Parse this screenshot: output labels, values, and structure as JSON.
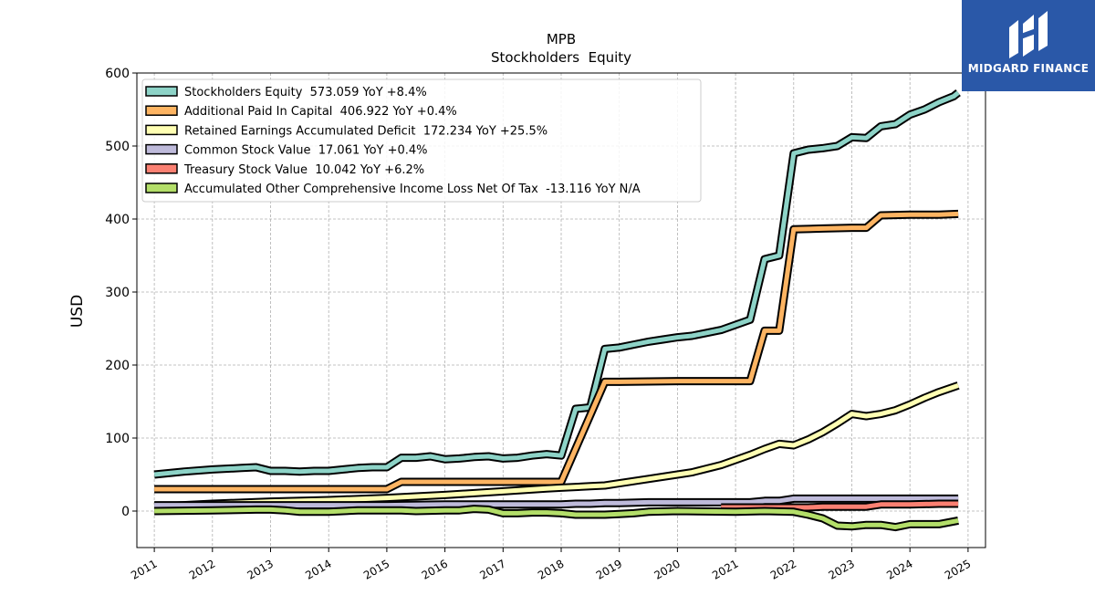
{
  "brand": {
    "name": "MIDGARD FINANCE",
    "logo_icon": "midgard-logo-icon",
    "background": "#2a58a8"
  },
  "chart_data": {
    "type": "line",
    "title": "MPB",
    "subtitle": "Stockholders  Equity",
    "ylabel": "USD",
    "xlabel": "",
    "xlim": [
      2010.7,
      2025.3
    ],
    "ylim": [
      -50,
      600
    ],
    "yticks": [
      0,
      100,
      200,
      300,
      400,
      500,
      600
    ],
    "xticks": [
      "2011",
      "2012",
      "2013",
      "2014",
      "2015",
      "2016",
      "2017",
      "2018",
      "2019",
      "2020",
      "2021",
      "2022",
      "2023",
      "2024",
      "2025"
    ],
    "grid": true,
    "legend_position": "top-left",
    "series": [
      {
        "name": "Stockholders Equity  573.059 YoY +8.4%",
        "color": "#8dd3c7",
        "x": [
          2011.0,
          2011.5,
          2012.0,
          2012.5,
          2012.75,
          2013.0,
          2013.25,
          2013.5,
          2013.75,
          2014.0,
          2014.25,
          2014.5,
          2014.75,
          2015.0,
          2015.25,
          2015.5,
          2015.75,
          2016.0,
          2016.25,
          2016.5,
          2016.75,
          2017.0,
          2017.25,
          2017.5,
          2017.75,
          2018.0,
          2018.25,
          2018.5,
          2018.75,
          2019.0,
          2019.25,
          2019.5,
          2019.75,
          2020.0,
          2020.25,
          2020.5,
          2020.75,
          2021.0,
          2021.25,
          2021.5,
          2021.75,
          2022.0,
          2022.25,
          2022.5,
          2022.75,
          2023.0,
          2023.25,
          2023.5,
          2023.75,
          2024.0,
          2024.25,
          2024.5,
          2024.75,
          2024.83
        ],
        "values": [
          50,
          54,
          57,
          59,
          60,
          55,
          55,
          54,
          55,
          55,
          57,
          59,
          60,
          60,
          73,
          73,
          75,
          71,
          72,
          74,
          75,
          72,
          73,
          76,
          78,
          76,
          140,
          142,
          222,
          224,
          228,
          232,
          235,
          238,
          240,
          244,
          248,
          255,
          262,
          345,
          350,
          490,
          495,
          497,
          500,
          512,
          511,
          527,
          530,
          543,
          550,
          560,
          568,
          573
        ]
      },
      {
        "name": "Additional Paid In Capital  406.922 YoY +0.4%",
        "color": "#fdb462",
        "x": [
          2011.0,
          2012.0,
          2013.0,
          2014.0,
          2015.0,
          2015.25,
          2016.0,
          2017.0,
          2018.0,
          2018.75,
          2019.0,
          2020.0,
          2021.0,
          2021.25,
          2021.5,
          2021.75,
          2022.0,
          2022.5,
          2023.0,
          2023.25,
          2023.5,
          2024.0,
          2024.5,
          2024.83
        ],
        "values": [
          30,
          30,
          30,
          30,
          30,
          40,
          40,
          40,
          40,
          177,
          177,
          178,
          178,
          178,
          247,
          247,
          386,
          387,
          388,
          388,
          405,
          406,
          406,
          407
        ]
      },
      {
        "name": "Retained Earnings Accumulated Deficit  172.234 YoY +25.5%",
        "color": "#ffffb3",
        "x": [
          2011.0,
          2012.0,
          2013.0,
          2014.0,
          2015.0,
          2016.0,
          2017.0,
          2017.75,
          2018.0,
          2018.5,
          2018.75,
          2019.0,
          2019.5,
          2020.0,
          2020.25,
          2020.5,
          2020.75,
          2021.0,
          2021.25,
          2021.5,
          2021.75,
          2022.0,
          2022.25,
          2022.5,
          2022.75,
          2023.0,
          2023.25,
          2023.5,
          2023.75,
          2024.0,
          2024.25,
          2024.5,
          2024.83
        ],
        "values": [
          6,
          10,
          13,
          15,
          18,
          22,
          27,
          31,
          32,
          34,
          35,
          38,
          44,
          50,
          53,
          58,
          63,
          70,
          77,
          85,
          92,
          90,
          98,
          108,
          120,
          133,
          130,
          133,
          138,
          146,
          155,
          163,
          172
        ]
      },
      {
        "name": "Common Stock Value  17.061 YoY +0.4%",
        "color": "#bebada",
        "x": [
          2011.0,
          2012.0,
          2013.0,
          2014.0,
          2015.0,
          2016.0,
          2017.0,
          2018.0,
          2018.25,
          2018.5,
          2018.75,
          2019.0,
          2019.5,
          2020.0,
          2021.0,
          2021.25,
          2021.5,
          2021.75,
          2022.0,
          2023.0,
          2023.5,
          2024.0,
          2024.83
        ],
        "values": [
          8,
          8,
          8,
          8,
          8,
          9,
          9,
          9,
          10,
          10,
          11,
          11,
          12,
          12,
          12,
          12,
          14,
          14,
          17,
          17,
          17,
          17,
          17
        ]
      },
      {
        "name": "Treasury Stock Value  10.042 YoY +6.2%",
        "color": "#fb8072",
        "x": [
          2020.75,
          2021.0,
          2021.5,
          2022.0,
          2022.25,
          2022.5,
          2022.75,
          2023.0,
          2023.25,
          2023.5,
          2024.0,
          2024.5,
          2024.83
        ],
        "values": [
          5,
          5,
          5,
          5,
          5,
          6,
          6,
          6,
          6,
          9,
          9,
          10,
          10
        ]
      },
      {
        "name": "Accumulated Other Comprehensive Income Loss Net Of Tax  -13.116 YoY N/A",
        "color": "#b3de69",
        "x": [
          2011.0,
          2012.0,
          2012.75,
          2013.0,
          2013.25,
          2013.5,
          2014.0,
          2014.5,
          2015.0,
          2015.25,
          2015.5,
          2016.0,
          2016.25,
          2016.5,
          2016.75,
          2017.0,
          2017.25,
          2017.5,
          2017.75,
          2018.0,
          2018.25,
          2018.75,
          2019.0,
          2019.25,
          2019.5,
          2020.0,
          2021.0,
          2021.5,
          2022.0,
          2022.25,
          2022.5,
          2022.75,
          2023.0,
          2023.25,
          2023.5,
          2023.75,
          2024.0,
          2024.5,
          2024.83
        ],
        "values": [
          0,
          1,
          2,
          2,
          1,
          -1,
          -1,
          1,
          1,
          1,
          0,
          1,
          1,
          3,
          2,
          -3,
          -3,
          -2,
          -2,
          -3,
          -5,
          -5,
          -4,
          -3,
          -1,
          0,
          -1,
          0,
          -1,
          -5,
          -10,
          -20,
          -21,
          -19,
          -19,
          -22,
          -18,
          -18,
          -13
        ]
      }
    ]
  }
}
